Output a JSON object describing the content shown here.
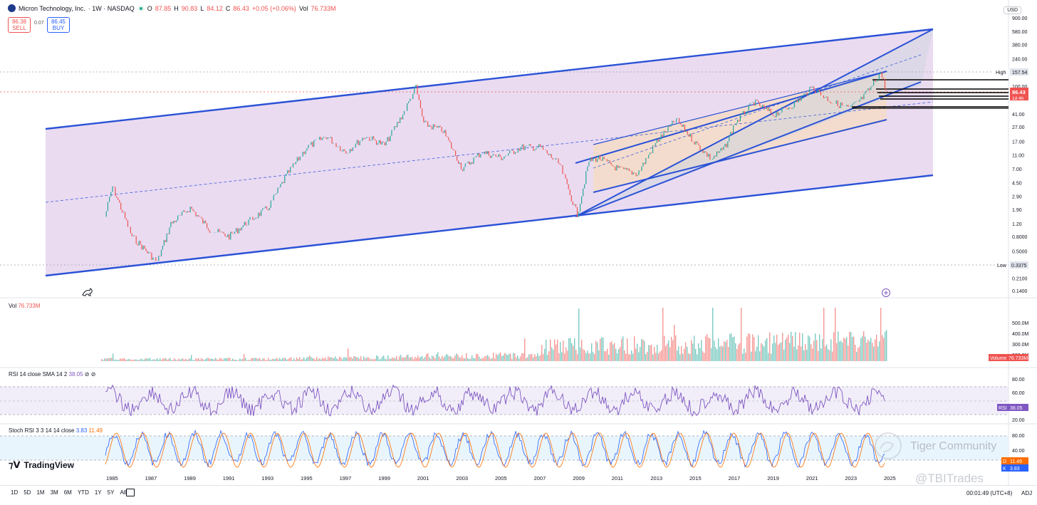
{
  "header": {
    "symbol_name": "Micron Technology, Inc.",
    "interval_exchange": "· 1W · NASDAQ",
    "open_label": "O",
    "open": "87.85",
    "high_label": "H",
    "high": "90.83",
    "low_label": "L",
    "low": "84.12",
    "close_label": "C",
    "close": "86.43",
    "change": "+0.05 (+0.06%)",
    "vol_label": "Vol",
    "vol": "76.733M"
  },
  "trade": {
    "sell_price": "86.38",
    "sell_label": "SELL",
    "buy_price": "86.45",
    "buy_label": "BUY",
    "spread": "0.07"
  },
  "currency_button": "USD",
  "indicators": {
    "volume": {
      "label": "Vol",
      "value": "76.733M",
      "tag_name": "Volume",
      "tag_value": "76.733M"
    },
    "rsi": {
      "label": "RSI 14 close SMA 14 2",
      "value": "38.05",
      "tag_name": "RSI",
      "tag_value": "38.05"
    },
    "stoch": {
      "label": "Stoch RSI 3 3 14 14 close",
      "k": "3.83",
      "d": "11.49",
      "d_tag": "D",
      "k_tag": "K"
    }
  },
  "price_markers": {
    "high_label": "High",
    "high_value": "157.54",
    "low_label": "Low",
    "low_value": "0.3375",
    "last_value": "86.43",
    "countdown": "1d 4h"
  },
  "branding": {
    "tradingview": "TradingView"
  },
  "watermarks": {
    "community": "Tiger Community",
    "handle": "@TBITrades"
  },
  "timeframes": [
    "1D",
    "5D",
    "1M",
    "3M",
    "6M",
    "YTD",
    "1Y",
    "5Y",
    "All"
  ],
  "footer": {
    "clock": "00:01:49 (UTC+8)",
    "adj": "ADJ"
  },
  "colors": {
    "up": "#26a69a",
    "down": "#ef5350",
    "channel_line": "#2a52d6",
    "outer_fill": "#e6d5ef",
    "inner_fill": "#f5dcc8",
    "rsi_line": "#7e57c2",
    "stoch_k": "#2962ff",
    "stoch_d": "#ff6d00"
  },
  "chart_data": [
    {
      "type": "line",
      "title": "Micron Technology, Inc. · 1W · NASDAQ",
      "y_scale": "log",
      "x_ticks": [
        "1985",
        "1987",
        "1989",
        "1991",
        "1993",
        "1995",
        "1997",
        "1999",
        "2001",
        "2003",
        "2005",
        "2007",
        "2009",
        "2011",
        "2013",
        "2015",
        "2017",
        "2019",
        "2021",
        "2023",
        "2025"
      ],
      "y_ticks": [
        "900.00",
        "580.00",
        "380.00",
        "240.00",
        "157.54",
        "100.00",
        "86.43",
        "41.00",
        "27.00",
        "17.00",
        "11.00",
        "7.00",
        "4.50",
        "2.90",
        "1.90",
        "1.20",
        "0.8000",
        "0.5000",
        "0.3375",
        "0.2100",
        "0.1400"
      ],
      "grid": false,
      "series": [
        {
          "name": "MU",
          "x": [
            "1984.6",
            "1985",
            "1986",
            "1987.3",
            "1988",
            "1989",
            "1990",
            "1991",
            "1992",
            "1993",
            "1994",
            "1995",
            "1996",
            "1997",
            "1998",
            "1999",
            "2000",
            "2000.6",
            "2001",
            "2002",
            "2003",
            "2004",
            "2005",
            "2006",
            "2007",
            "2008",
            "2008.9",
            "2009.5",
            "2010",
            "2011",
            "2012",
            "2013",
            "2014",
            "2015",
            "2015.8",
            "2016.5",
            "2017",
            "2018",
            "2019",
            "2020",
            "2021",
            "2022",
            "2022.9",
            "2023.5",
            "2024",
            "2024.5",
            "2024.8"
          ],
          "y": [
            1.5,
            4.0,
            0.8,
            0.35,
            1.2,
            2.0,
            1.0,
            0.8,
            1.3,
            2.0,
            6.0,
            14.0,
            20.0,
            12.0,
            20.0,
            15.0,
            44.0,
            97.0,
            30.0,
            24.0,
            7.0,
            12.0,
            10.0,
            14.0,
            14.0,
            8.0,
            1.6,
            9.0,
            10.0,
            7.0,
            6.0,
            17.0,
            34.0,
            16.0,
            9.6,
            14.0,
            30.0,
            60.0,
            40.0,
            55.0,
            95.0,
            60.0,
            49.0,
            65.0,
            95.0,
            157.54,
            86.43
          ]
        }
      ]
    },
    {
      "type": "bar",
      "title": "Vol 76.733M",
      "y_ticks": [
        "500.0M",
        "400.0M",
        "300.0M",
        "200.0M"
      ],
      "series": [
        {
          "name": "Volume",
          "values": [
            76.733
          ]
        }
      ]
    },
    {
      "type": "line",
      "title": "RSI 14 close SMA 14 2",
      "y_ticks": [
        "80.00",
        "60.00",
        "20.00"
      ],
      "series": [
        {
          "name": "RSI",
          "values": [
            38.05
          ]
        }
      ]
    },
    {
      "type": "line",
      "title": "Stoch RSI 3 3 14 14 close",
      "y_ticks": [
        "80.00",
        "40.00",
        "20.00"
      ],
      "series": [
        {
          "name": "K",
          "values": [
            3.83
          ]
        },
        {
          "name": "D",
          "values": [
            11.49
          ]
        }
      ]
    }
  ]
}
